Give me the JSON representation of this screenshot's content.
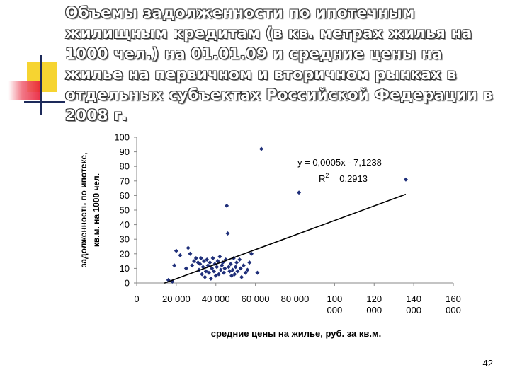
{
  "slide": {
    "title": "Объемы задолженности по ипотечным жилищным кредитам (в кв. метрах жилья на 1000 чел.) на 01.01.09 и средние цены на жилье на первичном и вторичном рынках в отдельных субъектах Российской Федерации в 2008 г.",
    "page_number": "42"
  },
  "chart_data": {
    "type": "scatter",
    "xlabel": "средние цены на жилье, руб. за кв.м.",
    "ylabel_line1": "задолженность по ипотеке,",
    "ylabel_line2": "кв.м. на 1000 чел.",
    "xlim": [
      0,
      160000
    ],
    "ylim": [
      0,
      100
    ],
    "x_ticks": [
      0,
      20000,
      40000,
      60000,
      80000,
      100000,
      120000,
      140000,
      160000
    ],
    "x_tick_labels": [
      [
        "0"
      ],
      [
        "20 000"
      ],
      [
        "40 000"
      ],
      [
        "60 000"
      ],
      [
        "80 000"
      ],
      [
        "100",
        "000"
      ],
      [
        "120",
        "000"
      ],
      [
        "140",
        "000"
      ],
      [
        "160",
        "000"
      ]
    ],
    "y_ticks": [
      0,
      10,
      20,
      30,
      40,
      50,
      60,
      70,
      80,
      90,
      100
    ],
    "y_tick_labels": [
      "0",
      "10",
      "20",
      "30",
      "40",
      "50",
      "60",
      "70",
      "80",
      "90",
      "100"
    ],
    "grid": false,
    "marker_color": "#1f2f7a",
    "trendline": {
      "equation": "y = 0,0005x - 7,1238",
      "r2_label": "R",
      "r2_sup": "2",
      "r2_value": " = 0,2913",
      "slope": 0.0005,
      "intercept": -7.1238,
      "x_range": [
        14000,
        136000
      ]
    },
    "points": [
      [
        16000,
        2
      ],
      [
        18000,
        1
      ],
      [
        19000,
        12
      ],
      [
        20000,
        22
      ],
      [
        22000,
        19
      ],
      [
        25000,
        10
      ],
      [
        26000,
        24
      ],
      [
        27000,
        20
      ],
      [
        28000,
        12
      ],
      [
        29000,
        15
      ],
      [
        30000,
        17
      ],
      [
        31000,
        14
      ],
      [
        31500,
        9
      ],
      [
        32000,
        13
      ],
      [
        32500,
        17
      ],
      [
        33000,
        6
      ],
      [
        33500,
        11
      ],
      [
        34000,
        15
      ],
      [
        34500,
        4
      ],
      [
        35000,
        8
      ],
      [
        35500,
        16
      ],
      [
        36000,
        12
      ],
      [
        36500,
        7
      ],
      [
        37000,
        14
      ],
      [
        37500,
        3
      ],
      [
        38000,
        10
      ],
      [
        38500,
        17
      ],
      [
        39000,
        8
      ],
      [
        39500,
        13
      ],
      [
        40000,
        5
      ],
      [
        40500,
        11
      ],
      [
        41000,
        15
      ],
      [
        41500,
        6
      ],
      [
        42000,
        18
      ],
      [
        42500,
        9
      ],
      [
        43000,
        12
      ],
      [
        43500,
        14
      ],
      [
        44000,
        7
      ],
      [
        44500,
        10
      ],
      [
        45000,
        16
      ],
      [
        45500,
        53
      ],
      [
        46000,
        34
      ],
      [
        46500,
        11
      ],
      [
        47000,
        8
      ],
      [
        47500,
        13
      ],
      [
        48000,
        5
      ],
      [
        48500,
        9
      ],
      [
        49000,
        17
      ],
      [
        49500,
        6
      ],
      [
        50000,
        11
      ],
      [
        50500,
        14
      ],
      [
        51000,
        8
      ],
      [
        52000,
        16
      ],
      [
        52500,
        10
      ],
      [
        53000,
        4
      ],
      [
        54000,
        12
      ],
      [
        55000,
        7
      ],
      [
        56000,
        9
      ],
      [
        57000,
        14
      ],
      [
        58000,
        20
      ],
      [
        61000,
        7
      ],
      [
        63000,
        92
      ],
      [
        82000,
        62
      ],
      [
        136000,
        71
      ]
    ]
  }
}
